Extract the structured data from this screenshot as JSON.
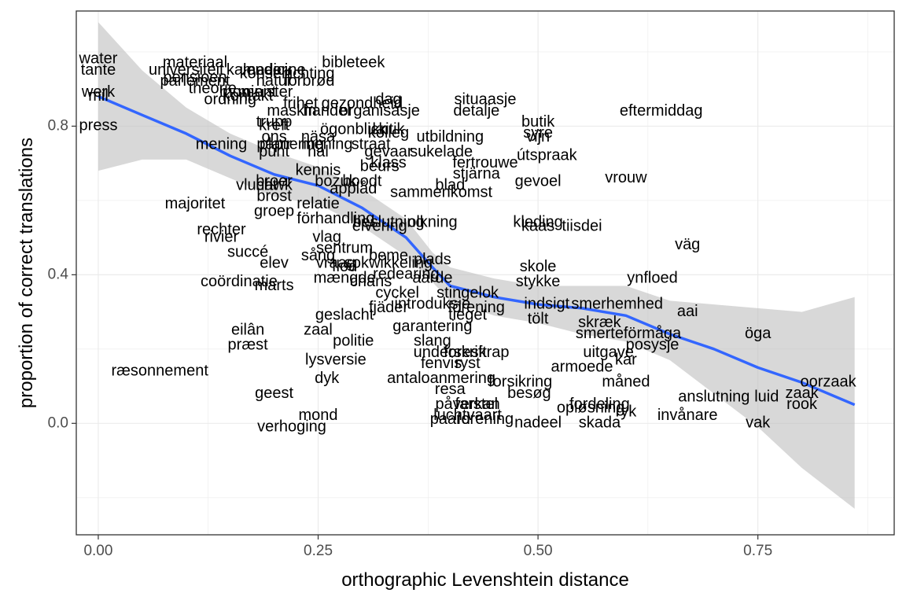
{
  "chart_data": {
    "type": "scatter",
    "title": "",
    "xlabel": "orthographic Levenshtein distance",
    "ylabel": "proportion of correct translations",
    "xlim": [
      -0.025,
      0.905
    ],
    "ylim": [
      -0.3,
      1.11
    ],
    "x_ticks": [
      0,
      0.25,
      0.5,
      0.75
    ],
    "x_tick_labels": [
      "0.00",
      "0.25",
      "0.50",
      "0.75"
    ],
    "y_ticks": [
      0,
      0.4,
      0.8
    ],
    "y_tick_labels": [
      "0.0",
      "0.4",
      "0.8"
    ],
    "grid": true,
    "theme": "black-and-white",
    "point_style": "text labels",
    "points": [
      {
        "label": "water",
        "x": 0.0,
        "y": 0.98
      },
      {
        "label": "tante",
        "x": 0.0,
        "y": 0.95
      },
      {
        "label": "werk",
        "x": 0.0,
        "y": 0.89
      },
      {
        "label": "mil",
        "x": 0.0,
        "y": 0.88
      },
      {
        "label": "press",
        "x": 0.0,
        "y": 0.8
      },
      {
        "label": "materiaal",
        "x": 0.11,
        "y": 0.97
      },
      {
        "label": "universiteit",
        "x": 0.1,
        "y": 0.95
      },
      {
        "label": "pensioen",
        "x": 0.11,
        "y": 0.93
      },
      {
        "label": "parlement",
        "x": 0.11,
        "y": 0.92
      },
      {
        "label": "theorie",
        "x": 0.13,
        "y": 0.9
      },
      {
        "label": "ordning",
        "x": 0.15,
        "y": 0.87
      },
      {
        "label": "kalender",
        "x": 0.18,
        "y": 0.95
      },
      {
        "label": "konsert",
        "x": 0.19,
        "y": 0.94
      },
      {
        "label": "medicine",
        "x": 0.2,
        "y": 0.95
      },
      {
        "label": "minister",
        "x": 0.19,
        "y": 0.89
      },
      {
        "label": "moment",
        "x": 0.17,
        "y": 0.89
      },
      {
        "label": "kontakt",
        "x": 0.17,
        "y": 0.88
      },
      {
        "label": "bibleteek",
        "x": 0.29,
        "y": 0.97
      },
      {
        "label": "richting",
        "x": 0.24,
        "y": 0.94
      },
      {
        "label": "forbrød",
        "x": 0.24,
        "y": 0.92
      },
      {
        "label": "natur",
        "x": 0.2,
        "y": 0.92
      },
      {
        "label": "frihet",
        "x": 0.23,
        "y": 0.86
      },
      {
        "label": "maskin",
        "x": 0.22,
        "y": 0.84
      },
      {
        "label": "handel",
        "x": 0.26,
        "y": 0.84
      },
      {
        "label": "gezondheid",
        "x": 0.3,
        "y": 0.86
      },
      {
        "label": "organisasje",
        "x": 0.32,
        "y": 0.84
      },
      {
        "label": "dag",
        "x": 0.33,
        "y": 0.87
      },
      {
        "label": "situaasje",
        "x": 0.44,
        "y": 0.87
      },
      {
        "label": "detalje",
        "x": 0.43,
        "y": 0.84
      },
      {
        "label": "eftermiddag",
        "x": 0.64,
        "y": 0.84
      },
      {
        "label": "trupp",
        "x": 0.2,
        "y": 0.81
      },
      {
        "label": "kreft",
        "x": 0.2,
        "y": 0.8
      },
      {
        "label": "ögonblick",
        "x": 0.29,
        "y": 0.79
      },
      {
        "label": "butik",
        "x": 0.5,
        "y": 0.81
      },
      {
        "label": "syre",
        "x": 0.5,
        "y": 0.78
      },
      {
        "label": "vijn",
        "x": 0.5,
        "y": 0.77
      },
      {
        "label": "kritik",
        "x": 0.33,
        "y": 0.79
      },
      {
        "label": "kolleg",
        "x": 0.33,
        "y": 0.78
      },
      {
        "label": "ons",
        "x": 0.2,
        "y": 0.77
      },
      {
        "label": "näsa",
        "x": 0.25,
        "y": 0.77
      },
      {
        "label": "utbildning",
        "x": 0.4,
        "y": 0.77
      },
      {
        "label": "mening",
        "x": 0.14,
        "y": 0.75
      },
      {
        "label": "planering",
        "x": 0.22,
        "y": 0.75
      },
      {
        "label": "papir",
        "x": 0.2,
        "y": 0.75
      },
      {
        "label": "mening",
        "x": 0.26,
        "y": 0.75
      },
      {
        "label": "straat",
        "x": 0.31,
        "y": 0.75
      },
      {
        "label": "gevaar",
        "x": 0.33,
        "y": 0.73
      },
      {
        "label": "sukelade",
        "x": 0.39,
        "y": 0.73
      },
      {
        "label": "punt",
        "x": 0.2,
        "y": 0.73
      },
      {
        "label": "hal",
        "x": 0.25,
        "y": 0.73
      },
      {
        "label": "útspraak",
        "x": 0.51,
        "y": 0.72
      },
      {
        "label": "fertrouwe",
        "x": 0.44,
        "y": 0.7
      },
      {
        "label": "klass",
        "x": 0.33,
        "y": 0.7
      },
      {
        "label": "beurs",
        "x": 0.32,
        "y": 0.69
      },
      {
        "label": "kennis",
        "x": 0.25,
        "y": 0.68
      },
      {
        "label": "stjärna",
        "x": 0.43,
        "y": 0.67
      },
      {
        "label": "vrouw",
        "x": 0.6,
        "y": 0.66
      },
      {
        "label": "gevoel",
        "x": 0.5,
        "y": 0.65
      },
      {
        "label": "vlucht",
        "x": 0.18,
        "y": 0.64
      },
      {
        "label": "hawk",
        "x": 0.2,
        "y": 0.64
      },
      {
        "label": "broer",
        "x": 0.2,
        "y": 0.65
      },
      {
        "label": "bozuk",
        "x": 0.27,
        "y": 0.65
      },
      {
        "label": "boodt",
        "x": 0.3,
        "y": 0.65
      },
      {
        "label": "blad",
        "x": 0.4,
        "y": 0.64
      },
      {
        "label": "applåd",
        "x": 0.29,
        "y": 0.63
      },
      {
        "label": "sammenkomst",
        "x": 0.39,
        "y": 0.62
      },
      {
        "label": "brost",
        "x": 0.2,
        "y": 0.61
      },
      {
        "label": "majoritet",
        "x": 0.11,
        "y": 0.59
      },
      {
        "label": "relatie",
        "x": 0.25,
        "y": 0.59
      },
      {
        "label": "groep",
        "x": 0.2,
        "y": 0.57
      },
      {
        "label": "förhandling",
        "x": 0.27,
        "y": 0.55
      },
      {
        "label": "beslutning",
        "x": 0.33,
        "y": 0.54
      },
      {
        "label": "elvering",
        "x": 0.32,
        "y": 0.53
      },
      {
        "label": "olkning",
        "x": 0.38,
        "y": 0.54
      },
      {
        "label": "kleding",
        "x": 0.5,
        "y": 0.54
      },
      {
        "label": "kaas",
        "x": 0.5,
        "y": 0.53
      },
      {
        "label": "tiisdei",
        "x": 0.55,
        "y": 0.53
      },
      {
        "label": "rechter",
        "x": 0.14,
        "y": 0.52
      },
      {
        "label": "rivier",
        "x": 0.14,
        "y": 0.5
      },
      {
        "label": "vlag",
        "x": 0.26,
        "y": 0.5
      },
      {
        "label": "väg",
        "x": 0.67,
        "y": 0.48
      },
      {
        "label": "sentrum",
        "x": 0.28,
        "y": 0.47
      },
      {
        "label": "succé",
        "x": 0.17,
        "y": 0.46
      },
      {
        "label": "sång",
        "x": 0.25,
        "y": 0.45
      },
      {
        "label": "beme",
        "x": 0.33,
        "y": 0.45
      },
      {
        "label": "plads",
        "x": 0.38,
        "y": 0.44
      },
      {
        "label": "elev",
        "x": 0.2,
        "y": 0.43
      },
      {
        "label": "sokwikkeling",
        "x": 0.33,
        "y": 0.43
      },
      {
        "label": "skole",
        "x": 0.5,
        "y": 0.42
      },
      {
        "label": "flod",
        "x": 0.28,
        "y": 0.42
      },
      {
        "label": "vraag",
        "x": 0.27,
        "y": 0.43
      },
      {
        "label": "redearing",
        "x": 0.35,
        "y": 0.4
      },
      {
        "label": "aarde",
        "x": 0.38,
        "y": 0.39
      },
      {
        "label": "ynfloed",
        "x": 0.63,
        "y": 0.39
      },
      {
        "label": "mængde",
        "x": 0.28,
        "y": 0.39
      },
      {
        "label": "chans",
        "x": 0.31,
        "y": 0.38
      },
      {
        "label": "coördinatie",
        "x": 0.16,
        "y": 0.38
      },
      {
        "label": "marts",
        "x": 0.2,
        "y": 0.37
      },
      {
        "label": "stykke",
        "x": 0.5,
        "y": 0.38
      },
      {
        "label": "cyckel",
        "x": 0.34,
        "y": 0.35
      },
      {
        "label": "stingelok",
        "x": 0.42,
        "y": 0.35
      },
      {
        "label": "indsigt",
        "x": 0.51,
        "y": 0.32
      },
      {
        "label": "smerhemhed",
        "x": 0.59,
        "y": 0.32
      },
      {
        "label": "fjäder",
        "x": 0.33,
        "y": 0.31
      },
      {
        "label": "introduksje",
        "x": 0.38,
        "y": 0.32
      },
      {
        "label": "förening",
        "x": 0.43,
        "y": 0.31
      },
      {
        "label": "aai",
        "x": 0.67,
        "y": 0.3
      },
      {
        "label": "geslacht",
        "x": 0.28,
        "y": 0.29
      },
      {
        "label": "tieget",
        "x": 0.42,
        "y": 0.29
      },
      {
        "label": "tölt",
        "x": 0.5,
        "y": 0.28
      },
      {
        "label": "skræk",
        "x": 0.57,
        "y": 0.27
      },
      {
        "label": "garantering",
        "x": 0.38,
        "y": 0.26
      },
      {
        "label": "zaal",
        "x": 0.25,
        "y": 0.25
      },
      {
        "label": "eilân",
        "x": 0.17,
        "y": 0.25
      },
      {
        "label": "smerte",
        "x": 0.57,
        "y": 0.24
      },
      {
        "label": "förmåga",
        "x": 0.63,
        "y": 0.24
      },
      {
        "label": "öga",
        "x": 0.75,
        "y": 0.24
      },
      {
        "label": "præst",
        "x": 0.17,
        "y": 0.21
      },
      {
        "label": "politie",
        "x": 0.29,
        "y": 0.22
      },
      {
        "label": "slang",
        "x": 0.38,
        "y": 0.22
      },
      {
        "label": "posysje",
        "x": 0.63,
        "y": 0.21
      },
      {
        "label": "underskrift",
        "x": 0.4,
        "y": 0.19
      },
      {
        "label": "foreskrap",
        "x": 0.43,
        "y": 0.19
      },
      {
        "label": "uitgave",
        "x": 0.58,
        "y": 0.19
      },
      {
        "label": "lysversie",
        "x": 0.27,
        "y": 0.17
      },
      {
        "label": "fenvis",
        "x": 0.39,
        "y": 0.16
      },
      {
        "label": "ryst",
        "x": 0.42,
        "y": 0.16
      },
      {
        "label": "kar",
        "x": 0.6,
        "y": 0.17
      },
      {
        "label": "armoede",
        "x": 0.55,
        "y": 0.15
      },
      {
        "label": "ræsonnement",
        "x": 0.07,
        "y": 0.14
      },
      {
        "label": "dyk",
        "x": 0.26,
        "y": 0.12
      },
      {
        "label": "antaloanmering",
        "x": 0.39,
        "y": 0.12
      },
      {
        "label": "forsikring",
        "x": 0.48,
        "y": 0.11
      },
      {
        "label": "måned",
        "x": 0.6,
        "y": 0.11
      },
      {
        "label": "oorzaak",
        "x": 0.83,
        "y": 0.11
      },
      {
        "label": "resa",
        "x": 0.4,
        "y": 0.09
      },
      {
        "label": "besøg",
        "x": 0.49,
        "y": 0.08
      },
      {
        "label": "geest",
        "x": 0.2,
        "y": 0.08
      },
      {
        "label": "anslutning",
        "x": 0.7,
        "y": 0.07
      },
      {
        "label": "zaak",
        "x": 0.8,
        "y": 0.08
      },
      {
        "label": "luid",
        "x": 0.76,
        "y": 0.07
      },
      {
        "label": "rook",
        "x": 0.8,
        "y": 0.05
      },
      {
        "label": "påverkan",
        "x": 0.42,
        "y": 0.05
      },
      {
        "label": "farstel",
        "x": 0.43,
        "y": 0.05
      },
      {
        "label": "fordeling",
        "x": 0.57,
        "y": 0.05
      },
      {
        "label": "opløsning",
        "x": 0.56,
        "y": 0.04
      },
      {
        "label": "ryk",
        "x": 0.6,
        "y": 0.03
      },
      {
        "label": "invånare",
        "x": 0.67,
        "y": 0.02
      },
      {
        "label": "mond",
        "x": 0.25,
        "y": 0.02
      },
      {
        "label": "luchtvaart",
        "x": 0.42,
        "y": 0.02
      },
      {
        "label": "paard",
        "x": 0.4,
        "y": 0.01
      },
      {
        "label": "forening",
        "x": 0.44,
        "y": 0.01
      },
      {
        "label": "nadeel",
        "x": 0.5,
        "y": 0.0
      },
      {
        "label": "skada",
        "x": 0.57,
        "y": 0.0
      },
      {
        "label": "vak",
        "x": 0.75,
        "y": 0.0
      },
      {
        "label": "verhoging",
        "x": 0.22,
        "y": -0.01
      }
    ],
    "smooth_line": {
      "color": "#3366FF",
      "x": [
        0.0,
        0.05,
        0.1,
        0.15,
        0.2,
        0.25,
        0.3,
        0.35,
        0.38,
        0.4,
        0.45,
        0.5,
        0.55,
        0.6,
        0.65,
        0.7,
        0.75,
        0.8,
        0.86
      ],
      "y": [
        0.88,
        0.83,
        0.78,
        0.72,
        0.67,
        0.64,
        0.58,
        0.5,
        0.42,
        0.37,
        0.34,
        0.32,
        0.31,
        0.29,
        0.24,
        0.2,
        0.15,
        0.11,
        0.05
      ],
      "ci_lower": [
        0.68,
        0.71,
        0.71,
        0.66,
        0.61,
        0.59,
        0.53,
        0.45,
        0.38,
        0.33,
        0.29,
        0.27,
        0.24,
        0.22,
        0.17,
        0.08,
        -0.01,
        -0.12,
        -0.23
      ],
      "ci_upper": [
        1.08,
        0.95,
        0.85,
        0.78,
        0.73,
        0.69,
        0.63,
        0.55,
        0.46,
        0.42,
        0.39,
        0.37,
        0.37,
        0.37,
        0.33,
        0.32,
        0.31,
        0.3,
        0.34
      ]
    },
    "colors": {
      "ribbon": "#bebebe",
      "grid": "#ebebeb",
      "label_text": "#000000",
      "panel_border": "#333333"
    }
  }
}
